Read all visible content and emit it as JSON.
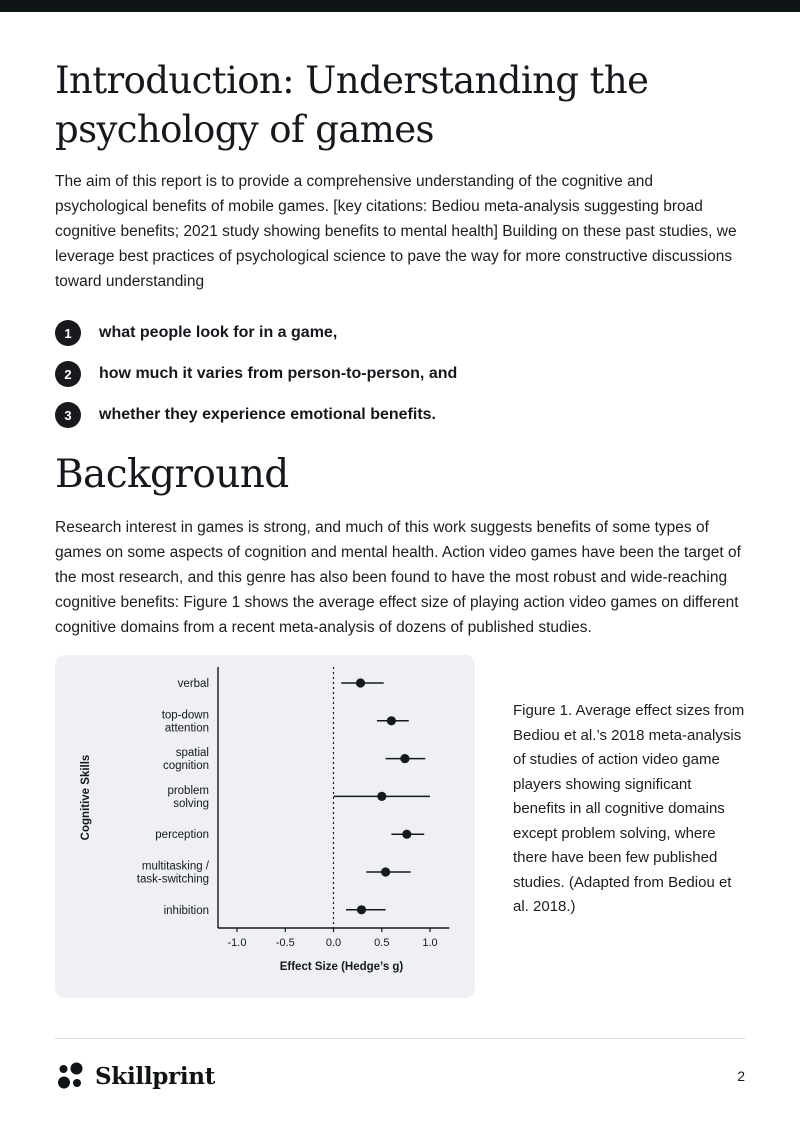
{
  "colors": {
    "top_bar": "#0f1417",
    "text": "#1a1d21",
    "figure_bg": "#eef0f3",
    "badge_bg": "#17191c",
    "divider": "#d9dce1"
  },
  "intro": {
    "title": "Introduction: Understanding the psychology of games",
    "paragraph": "The aim of this report is to provide a comprehensive understanding of the cognitive and psychological benefits of mobile games. [key citations: Bediou meta-analysis suggesting broad cognitive benefits; 2021 study showing benefits to mental health] Building on these past studies, we leverage best practices of psychological science to pave the way for more constructive discussions toward understanding",
    "list": [
      {
        "number": "1",
        "text": "what people look for in a game,"
      },
      {
        "number": "2",
        "text": "how much it varies from person-to-person, and"
      },
      {
        "number": "3",
        "text": "whether they experience emotional benefits."
      }
    ]
  },
  "background": {
    "title": "Background",
    "paragraph": "Research interest in games is strong, and much of this work suggests benefits of some types of games on some aspects of cognition and mental health. Action video games have been the target of the most research, and this genre has also been found to have the most robust and wide-reaching cognitive benefits: Figure 1 shows the average effect size of playing action video games on different cognitive domains from a recent meta-analysis of dozens of published studies."
  },
  "figure": {
    "caption": "Figure 1. Average effect sizes from Bediou et al.’s 2018 meta-analysis of studies of action video game players showing significant benefits in all cognitive domains except problem solving, where there have been few published studies. (Adapted from Bediou et al. 2018.)"
  },
  "chart_data": {
    "type": "scatter",
    "variant": "forest-plot",
    "title": "",
    "xlabel": "Effect Size (Hedge’s g)",
    "ylabel": "Cognitive Skills",
    "xlim": [
      -1.2,
      1.2
    ],
    "zero_line": true,
    "grid": false,
    "x_ticks": [
      {
        "value": -1.0,
        "label": "-1.0"
      },
      {
        "value": -0.5,
        "label": "-0.5"
      },
      {
        "value": 0.0,
        "label": "0.0"
      },
      {
        "value": 0.5,
        "label": "0.5"
      },
      {
        "value": 1.0,
        "label": "1.0"
      }
    ],
    "points": [
      {
        "label": "verbal",
        "mean": 0.28,
        "ci_low": 0.08,
        "ci_high": 0.52
      },
      {
        "label": "top-down\nattention",
        "mean": 0.6,
        "ci_low": 0.45,
        "ci_high": 0.78
      },
      {
        "label": "spatial\ncognition",
        "mean": 0.74,
        "ci_low": 0.54,
        "ci_high": 0.95
      },
      {
        "label": "problem\nsolving",
        "mean": 0.5,
        "ci_low": 0.0,
        "ci_high": 1.0
      },
      {
        "label": "perception",
        "mean": 0.76,
        "ci_low": 0.6,
        "ci_high": 0.94
      },
      {
        "label": "multitasking /\ntask-switching",
        "mean": 0.54,
        "ci_low": 0.34,
        "ci_high": 0.8
      },
      {
        "label": "inhibition",
        "mean": 0.29,
        "ci_low": 0.13,
        "ci_high": 0.54
      }
    ]
  },
  "footer": {
    "brand": "Skillprint",
    "page_number": "2"
  }
}
